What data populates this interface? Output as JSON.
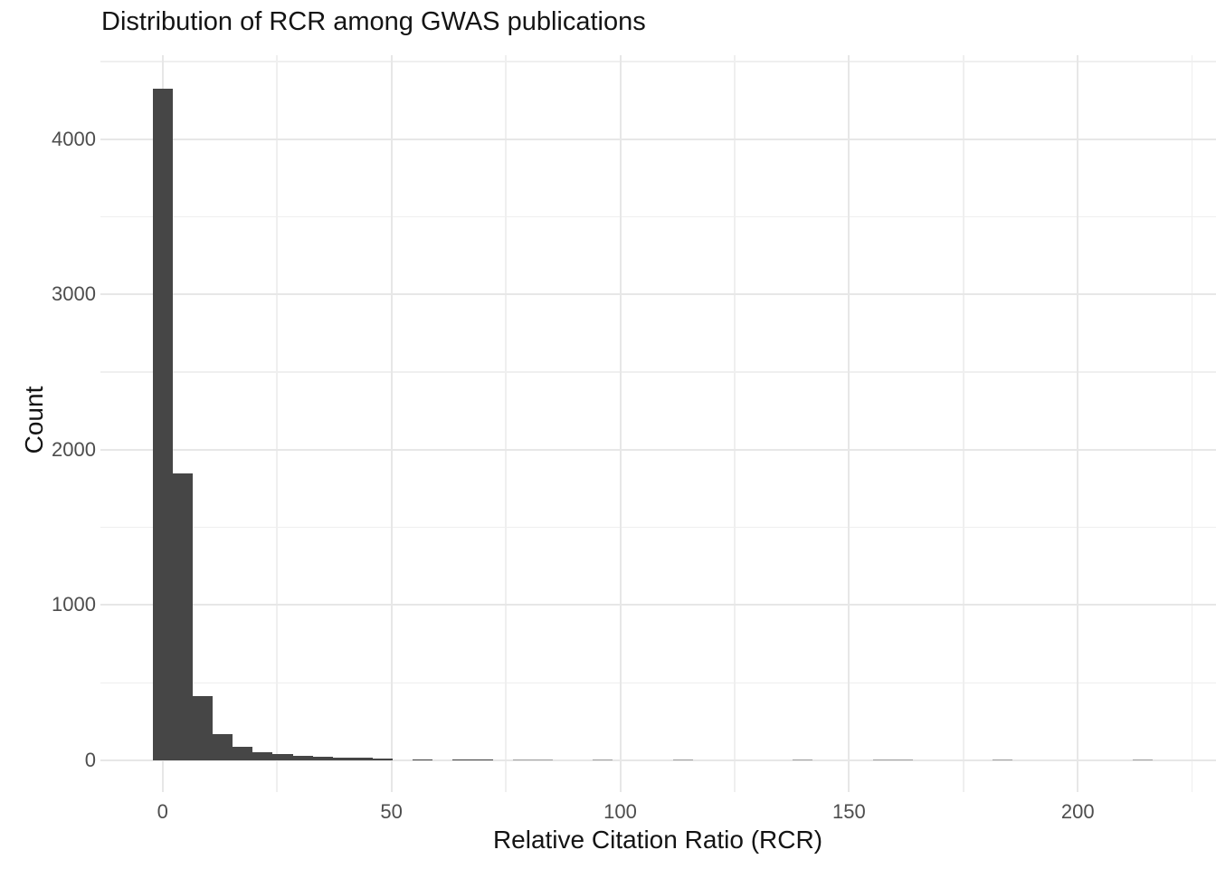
{
  "page": {
    "title": "Distribution of RCR among GWAS publications"
  },
  "chart_data": {
    "type": "bar",
    "subtype": "histogram",
    "title": "Distribution of RCR among GWAS publications",
    "xlabel": "Relative Citation Ratio (RCR)",
    "ylabel": "Count",
    "legend_position": "none",
    "grid": true,
    "x_major_ticks": [
      0,
      50,
      100,
      150,
      200
    ],
    "x_minor_gridlines": [
      25,
      75,
      125,
      175,
      225
    ],
    "y_major_ticks": [
      0,
      1000,
      2000,
      3000,
      4000
    ],
    "y_minor_gridlines": [
      500,
      1500,
      2500,
      3500,
      4500
    ],
    "xlim": [
      -13.6,
      230.2
    ],
    "ylim": [
      -204,
      4542
    ],
    "bins": {
      "width": 4.372,
      "first_center": 0,
      "counts": [
        4325,
        1850,
        415,
        170,
        87,
        52,
        38,
        29,
        23,
        16,
        15,
        9,
        0,
        6,
        0,
        8,
        8,
        0,
        3,
        3,
        0,
        0,
        3,
        0,
        0,
        0,
        2,
        0,
        0,
        0,
        0,
        0,
        2,
        0,
        0,
        0,
        2,
        2,
        0,
        0,
        0,
        0,
        2,
        0,
        0,
        0,
        0,
        0,
        0,
        2
      ]
    },
    "colors": {
      "bar": "#464646",
      "grid_major": "#E7E7E7",
      "grid_minor": "#EFEFEF",
      "tick_text": "#4D4D4D",
      "title_text": "#141414",
      "background": "#FFFFFF"
    }
  }
}
